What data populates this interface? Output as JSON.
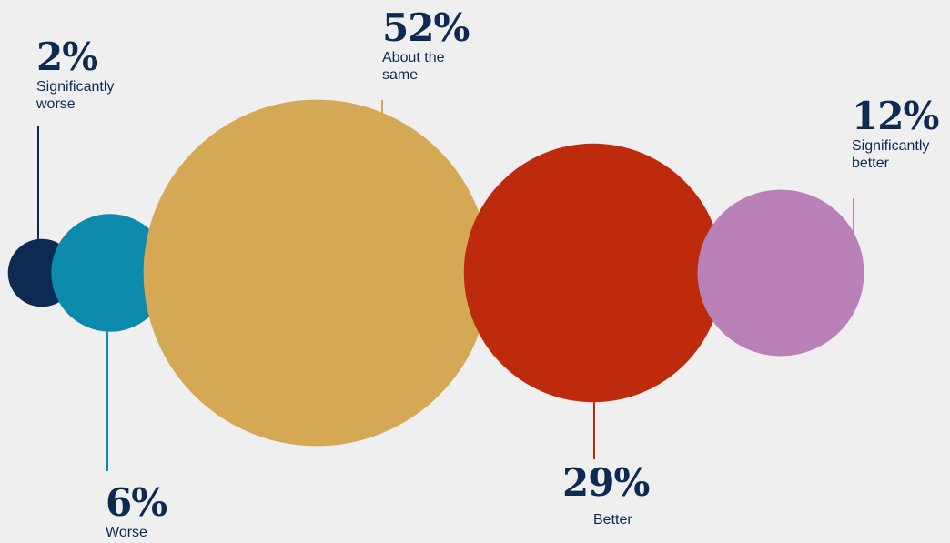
{
  "chart_data": {
    "type": "bubble",
    "series": [
      {
        "label": "Significantly\nworse",
        "value": 2,
        "display": "2%",
        "color": "#0d2a52"
      },
      {
        "label": "Worse",
        "value": 6,
        "display": "6%",
        "color": "#0b8aab"
      },
      {
        "label": "About the\nsame",
        "value": 52,
        "display": "52%",
        "color": "#d4a855"
      },
      {
        "label": "Better",
        "value": 29,
        "display": "29%",
        "color": "#bd2b0c"
      },
      {
        "label": "Significantly\nbetter",
        "value": 12,
        "display": "12%",
        "color": "#b981b8"
      }
    ]
  },
  "colors": {
    "background": "#efefef",
    "text": "#0d2a52"
  }
}
